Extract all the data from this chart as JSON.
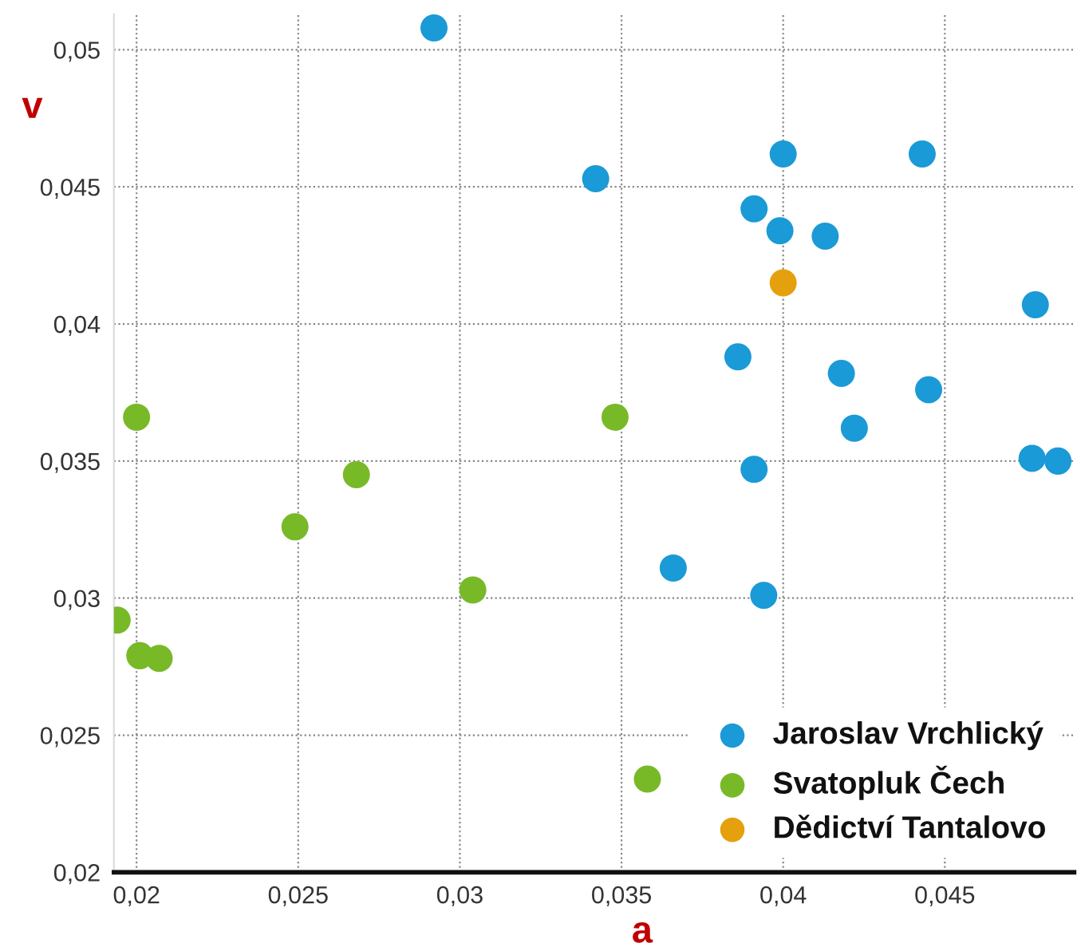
{
  "chart_data": {
    "type": "scatter",
    "xlabel": "a",
    "ylabel": "v",
    "xlim": [
      0.0193,
      0.049
    ],
    "ylim": [
      0.02,
      0.0513
    ],
    "xticks": [
      {
        "value": 0.02,
        "label": "0,02"
      },
      {
        "value": 0.025,
        "label": "0,025"
      },
      {
        "value": 0.03,
        "label": "0,03"
      },
      {
        "value": 0.035,
        "label": "0,035"
      },
      {
        "value": 0.04,
        "label": "0,04"
      },
      {
        "value": 0.045,
        "label": "0,045"
      }
    ],
    "yticks": [
      {
        "value": 0.02,
        "label": "0,02"
      },
      {
        "value": 0.025,
        "label": "0,025"
      },
      {
        "value": 0.03,
        "label": "0,03"
      },
      {
        "value": 0.035,
        "label": "0,035"
      },
      {
        "value": 0.04,
        "label": "0,04"
      },
      {
        "value": 0.045,
        "label": "0,045"
      },
      {
        "value": 0.05,
        "label": "0,05"
      }
    ],
    "grid": true,
    "legend": "bottom right",
    "marker": "circle",
    "series": [
      {
        "name": "Jaroslav Vrchlický",
        "color": "#1a9ad6",
        "x": [
          0.0292,
          0.0342,
          0.04,
          0.0443,
          0.0391,
          0.0399,
          0.0413,
          0.0478,
          0.0386,
          0.0418,
          0.0445,
          0.0422,
          0.0391,
          0.0477,
          0.0485,
          0.0366,
          0.0394
        ],
        "values": [
          0.0508,
          0.0453,
          0.0462,
          0.0462,
          0.0442,
          0.0434,
          0.0432,
          0.0407,
          0.0388,
          0.0382,
          0.0376,
          0.0362,
          0.0347,
          0.0351,
          0.035,
          0.0311,
          0.0301
        ]
      },
      {
        "name": "Svatopluk Čech",
        "color": "#78b928",
        "x": [
          0.02,
          0.0348,
          0.0268,
          0.0249,
          0.0304,
          0.0194,
          0.0201,
          0.0207,
          0.0358
        ],
        "values": [
          0.0366,
          0.0366,
          0.0345,
          0.0326,
          0.0303,
          0.0292,
          0.0279,
          0.0278,
          0.0234
        ]
      },
      {
        "name": "Dědictví Tantalovo",
        "color": "#e5a00d",
        "x": [
          0.04
        ],
        "values": [
          0.0415
        ]
      }
    ]
  }
}
